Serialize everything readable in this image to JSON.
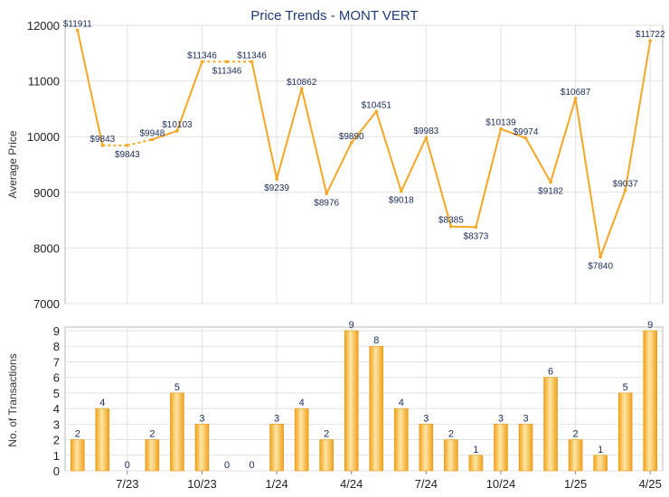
{
  "chart_data": [
    {
      "type": "line",
      "title": "Price Trends - MONT VERT",
      "ylabel": "Average Price",
      "ylim": [
        7000,
        12000
      ],
      "yticks": [
        7000,
        8000,
        9000,
        10000,
        11000,
        12000
      ],
      "grid": true,
      "series": [
        {
          "values": [
            11911,
            9843,
            9843,
            9948,
            10103,
            11346,
            11346,
            11346,
            9239,
            10862,
            8976,
            9890,
            10451,
            9018,
            9983,
            8385,
            8373,
            10139,
            9974,
            9182,
            10687,
            7840,
            9037,
            11722
          ],
          "labels": [
            "$11911",
            "$9843",
            "$9843",
            "$9948",
            "$10103",
            "$11346",
            "$11346",
            "$11346",
            "$9239",
            "$10862",
            "$8976",
            "$9890",
            "$10451",
            "$9018",
            "$9983",
            "$8385",
            "$8373",
            "$10139",
            "$9974",
            "$9182",
            "$10687",
            "$7840",
            "$9037",
            "$11722"
          ],
          "interpolated": [
            false,
            false,
            true,
            false,
            false,
            false,
            true,
            false,
            false,
            false,
            false,
            false,
            false,
            false,
            false,
            false,
            false,
            false,
            false,
            false,
            false,
            false,
            false,
            false
          ]
        }
      ],
      "line_color": "#f5a623"
    },
    {
      "type": "bar",
      "ylabel": "No. of Transactions",
      "ylim": [
        0,
        9
      ],
      "yticks": [
        0,
        1,
        2,
        3,
        4,
        5,
        6,
        7,
        8,
        9
      ],
      "grid": true,
      "values": [
        2,
        4,
        0,
        2,
        5,
        3,
        0,
        0,
        3,
        4,
        2,
        9,
        8,
        4,
        3,
        2,
        1,
        3,
        3,
        6,
        2,
        1,
        5,
        9
      ],
      "x_tick_labels": [
        {
          "index": 1.5,
          "label": "7/23"
        },
        {
          "index": 4.5,
          "label": "10/23"
        },
        {
          "index": 7.5,
          "label": "1/24"
        },
        {
          "index": 10.5,
          "label": "4/24"
        },
        {
          "index": 13.5,
          "label": "7/24"
        },
        {
          "index": 16.5,
          "label": "10/24"
        },
        {
          "index": 19.5,
          "label": "1/25"
        },
        {
          "index": 22.5,
          "label": "4/25"
        }
      ],
      "bar_color": "#f5a623"
    }
  ]
}
